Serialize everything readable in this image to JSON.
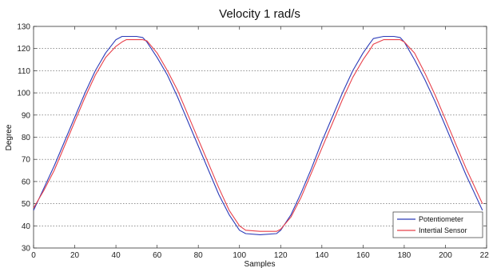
{
  "chart_data": {
    "type": "line",
    "title": "Velocity 1 rad/s",
    "xlabel": "Samples",
    "ylabel": "Degree",
    "xlim": [
      0,
      220
    ],
    "ylim": [
      30,
      130
    ],
    "xticks": [
      0,
      20,
      40,
      60,
      80,
      100,
      120,
      140,
      160,
      180,
      200,
      220
    ],
    "yticks": [
      30,
      40,
      50,
      60,
      70,
      80,
      90,
      100,
      110,
      120,
      130
    ],
    "grid": "horizontal dotted",
    "legend_position": "bottom-right",
    "series": [
      {
        "name": "Potentiometer",
        "color": "#2b3bb8",
        "x": [
          0,
          5,
          10,
          15,
          20,
          25,
          30,
          35,
          40,
          43,
          45,
          50,
          53,
          55,
          60,
          65,
          70,
          75,
          80,
          85,
          90,
          95,
          100,
          103,
          110,
          118,
          120,
          125,
          130,
          135,
          140,
          145,
          150,
          155,
          160,
          163,
          165,
          170,
          175,
          178,
          180,
          185,
          190,
          195,
          200,
          205,
          210,
          215,
          218
        ],
        "y": [
          47,
          57,
          67,
          78,
          89,
          100,
          110,
          118,
          124,
          125.5,
          125.5,
          125.5,
          125,
          123,
          116,
          108,
          98,
          87,
          76,
          65,
          54,
          45,
          38,
          36.5,
          36,
          36.5,
          38,
          45,
          55,
          66,
          78,
          89,
          100,
          110,
          118,
          122,
          124.5,
          125.5,
          125.5,
          125,
          123,
          115,
          106,
          96,
          85,
          74,
          63,
          53,
          47
        ]
      },
      {
        "name": "Intertial Sensor",
        "color": "#e8404a",
        "x": [
          0,
          5,
          10,
          15,
          20,
          25,
          30,
          35,
          40,
          43,
          45,
          50,
          53,
          55,
          60,
          65,
          70,
          75,
          80,
          85,
          90,
          95,
          100,
          103,
          110,
          118,
          120,
          125,
          130,
          135,
          140,
          145,
          150,
          155,
          160,
          163,
          165,
          170,
          175,
          178,
          180,
          185,
          190,
          195,
          200,
          205,
          210,
          215,
          218
        ],
        "y": [
          48,
          56,
          65,
          76,
          87,
          98,
          108,
          116,
          121,
          123,
          124,
          124,
          124,
          123.5,
          118,
          110,
          101,
          90,
          79,
          68,
          57,
          47,
          40,
          38,
          37.5,
          37.5,
          38.5,
          44,
          53,
          64,
          75,
          86,
          97,
          107,
          115,
          119,
          122,
          124,
          124,
          124,
          123,
          118,
          109,
          99,
          88,
          77,
          66,
          56,
          50
        ]
      }
    ]
  }
}
